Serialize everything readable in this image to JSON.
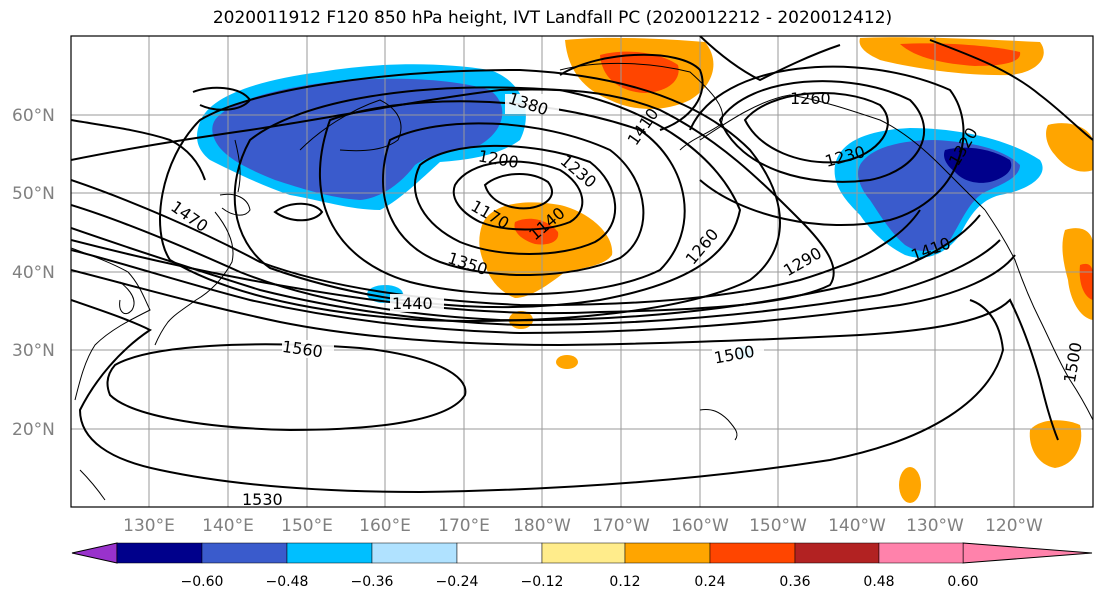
{
  "title": "2020011912 F120 850 hPa height, IVT Landfall PC (2020012212 - 2020012412)",
  "lat_labels": [
    "60°N",
    "50°N",
    "40°N",
    "30°N",
    "20°N"
  ],
  "lon_labels": [
    "130°E",
    "140°E",
    "150°E",
    "160°E",
    "170°E",
    "180°W",
    "170°W",
    "160°W",
    "150°W",
    "140°W",
    "130°W",
    "120°W"
  ],
  "contour_labels": [
    "1380",
    "1410",
    "1260",
    "1200",
    "1230",
    "1230",
    "1170",
    "1140",
    "1260",
    "1290",
    "1320",
    "1410",
    "1350",
    "1440",
    "1470",
    "1560",
    "1500",
    "1500",
    "1530"
  ],
  "colorbar": {
    "tick_labels": [
      "−0.60",
      "−0.48",
      "−0.36",
      "−0.24",
      "−0.12",
      "0.12",
      "0.24",
      "0.36",
      "0.48",
      "0.60"
    ],
    "colors": [
      "#9932cc",
      "#00008b",
      "#3a5bcc",
      "#00bfff",
      "#b0e2ff",
      "#ffffff",
      "#ffec8b",
      "#ffa500",
      "#ff4500",
      "#b22222",
      "#ff82ab"
    ]
  },
  "map_data": {
    "lat_range": [
      10,
      70
    ],
    "lon_range_east": [
      120,
      250
    ],
    "fill_colors": {
      "blue": "#3a5bcc",
      "cyan": "#00bfff",
      "navy": "#00008b",
      "orange": "#ffa500",
      "red": "#ff4500",
      "yellow": "#ffec8b"
    }
  }
}
